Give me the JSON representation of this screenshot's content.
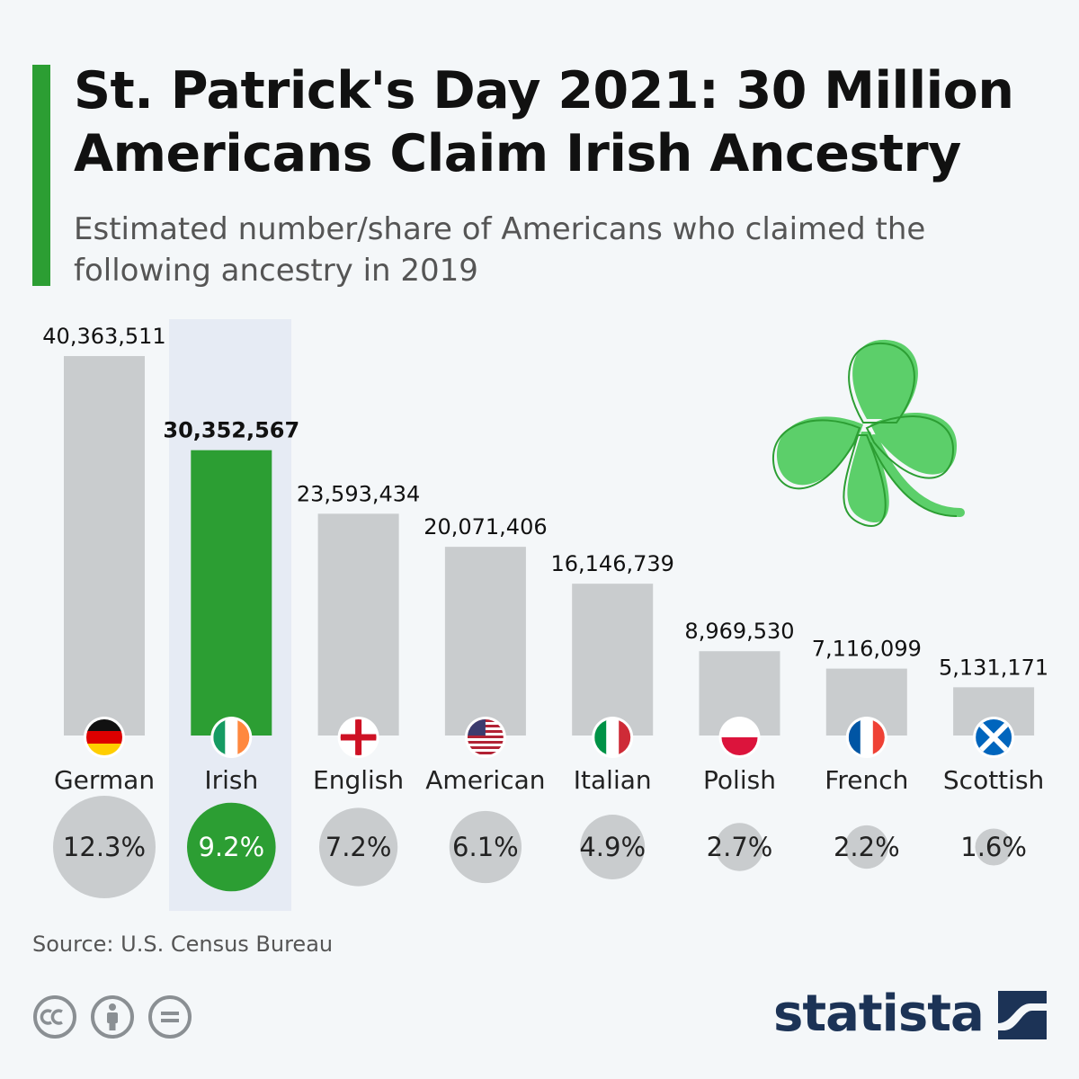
{
  "title": "St. Patrick's Day 2021: 30 Million Americans Claim Irish Ancestry",
  "subtitle": "Estimated number/share of Americans who claimed the following ancestry in 2019",
  "source": "Source: U.S. Census Bureau",
  "brand": "statista",
  "colors": {
    "accent": "#2c9e33",
    "bar": "#c9ccce",
    "bar_highlight": "#2c9e33",
    "circle": "#c9ccce",
    "highlight_background": "#e6ebf4",
    "shamrock": "#5ccf6a",
    "brand": "#1c3356"
  },
  "chart_data": {
    "type": "bar",
    "categories": [
      "German",
      "Irish",
      "English",
      "American",
      "Italian",
      "Polish",
      "French",
      "Scottish"
    ],
    "values": [
      40363511,
      30352567,
      23593434,
      20071406,
      16146739,
      8969530,
      7116099,
      5131171
    ],
    "value_labels": [
      "40,363,511",
      "30,352,567",
      "23,593,434",
      "20,071,406",
      "16,146,739",
      "8,969,530",
      "7,116,099",
      "5,131,171"
    ],
    "shares": [
      12.3,
      9.2,
      7.2,
      6.1,
      4.9,
      2.7,
      2.2,
      1.6
    ],
    "share_labels": [
      "12.3%",
      "9.2%",
      "7.2%",
      "6.1%",
      "4.9%",
      "2.7%",
      "2.2%",
      "1.6%"
    ],
    "flags": [
      "germany-flag",
      "ireland-flag",
      "england-flag",
      "usa-flag",
      "italy-flag",
      "poland-flag",
      "france-flag",
      "scotland-flag"
    ],
    "highlight": "Irish",
    "ylim": [
      0,
      40363511
    ],
    "grid": false
  },
  "icons": [
    "shamrock-icon",
    "cc-icon",
    "attribution-icon",
    "no-derivatives-icon",
    "statista-logo-icon"
  ]
}
